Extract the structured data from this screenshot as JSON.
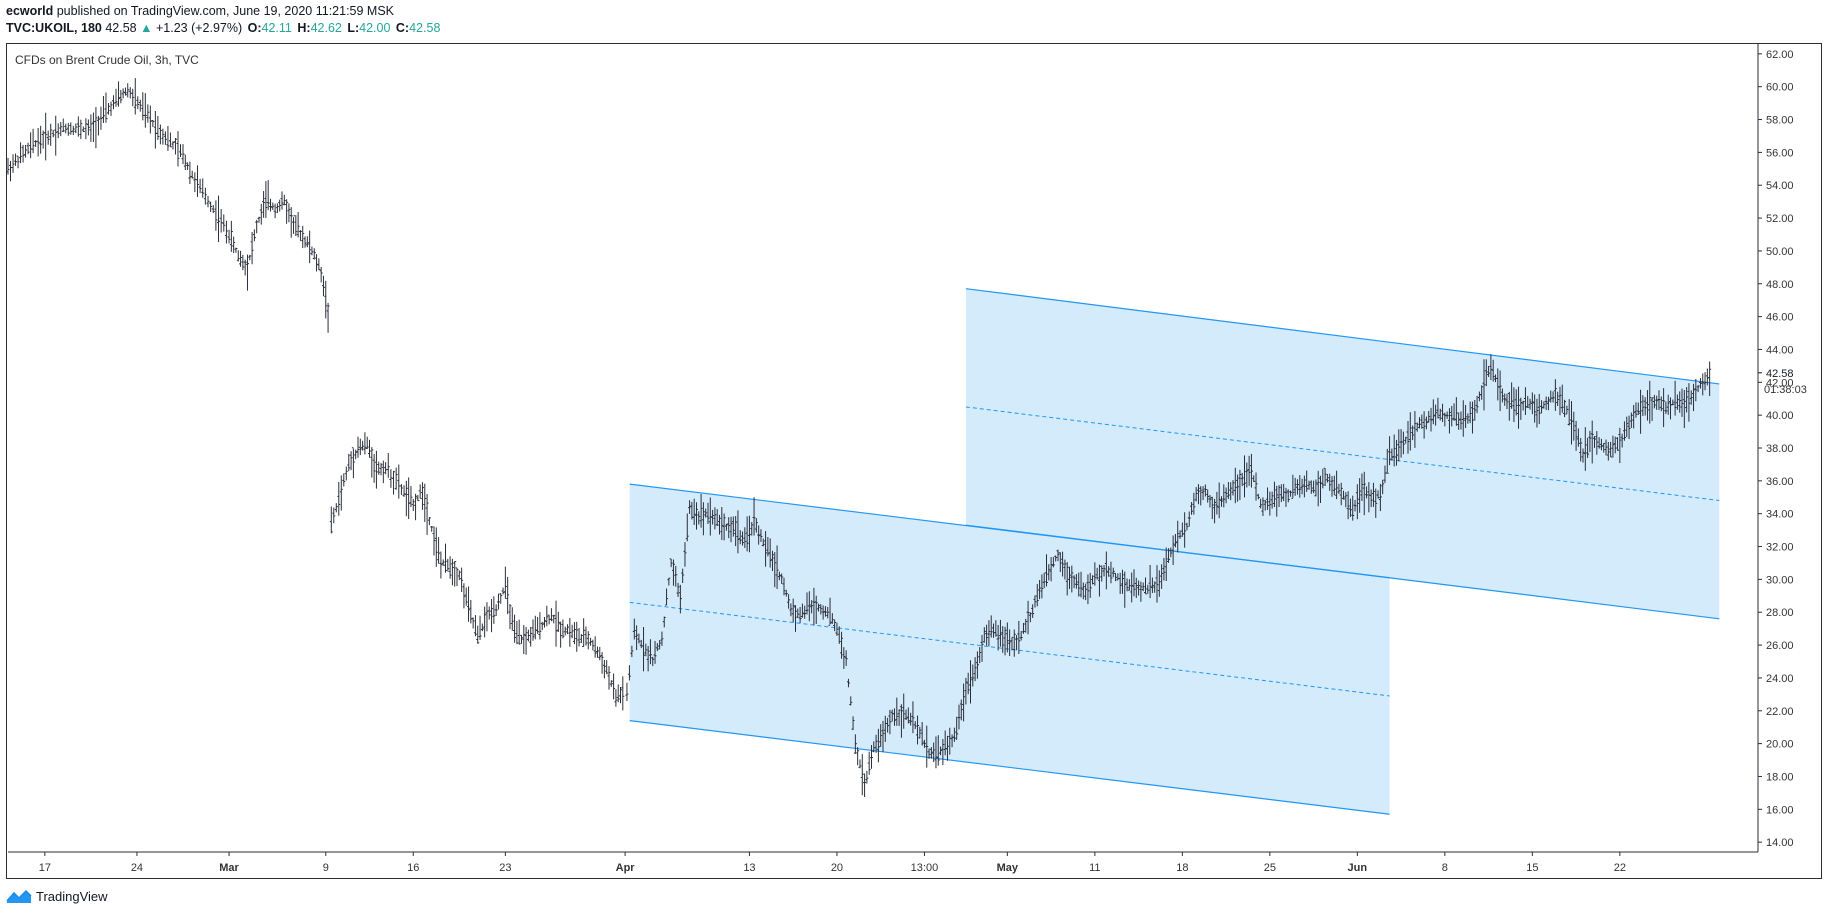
{
  "header": {
    "author": "ecworld",
    "published_text": "published on TradingView.com, June 19, 2020 11:21:59 MSK",
    "symbol": "TVC:UKOIL, 180",
    "last": "42.58",
    "change": "+1.23 (+2.97%)",
    "o_label": "O:",
    "o": "42.11",
    "h_label": "H:",
    "h": "42.62",
    "l_label": "L:",
    "l": "42.00",
    "c_label": "C:",
    "c": "42.58",
    "up_color": "#26a69a"
  },
  "chart_title": "CFDs on Brent Crude Oil, 3h, TVC",
  "footer": {
    "brand": "TradingView",
    "logo_icon": "tradingview-logo-icon"
  },
  "price_tag": {
    "price": "42.58",
    "countdown": "01:38:03"
  },
  "chart_data": {
    "type": "line",
    "ylim": [
      13.4,
      62.6
    ],
    "y_ticks": [
      "14.00",
      "16.00",
      "18.00",
      "20.00",
      "22.00",
      "24.00",
      "26.00",
      "28.00",
      "30.00",
      "32.00",
      "34.00",
      "36.00",
      "38.00",
      "40.00",
      "42.00",
      "44.00",
      "46.00",
      "48.00",
      "50.00",
      "52.00",
      "54.00",
      "56.00",
      "58.00",
      "60.00",
      "62.00"
    ],
    "x_ticks": [
      {
        "label": "17",
        "bold": false
      },
      {
        "label": "24",
        "bold": false
      },
      {
        "label": "Mar",
        "bold": true
      },
      {
        "label": "9",
        "bold": false
      },
      {
        "label": "16",
        "bold": false
      },
      {
        "label": "23",
        "bold": false
      },
      {
        "label": "Apr",
        "bold": true
      },
      {
        "label": "13",
        "bold": false
      },
      {
        "label": "20",
        "bold": false
      },
      {
        "label": "13:00",
        "bold": false
      },
      {
        "label": "May",
        "bold": true
      },
      {
        "label": "11",
        "bold": false
      },
      {
        "label": "18",
        "bold": false
      },
      {
        "label": "25",
        "bold": false
      },
      {
        "label": "Jun",
        "bold": true
      },
      {
        "label": "8",
        "bold": false
      },
      {
        "label": "15",
        "bold": false
      },
      {
        "label": "22",
        "bold": false
      }
    ],
    "series": [
      {
        "points": [
          [
            0,
            55.0
          ],
          [
            3,
            56.6
          ],
          [
            6,
            57.5
          ],
          [
            9,
            57.4
          ],
          [
            12,
            59.3
          ],
          [
            13,
            59.8
          ],
          [
            16,
            57.6
          ],
          [
            19,
            55.8
          ],
          [
            20,
            54.6
          ],
          [
            22,
            52.8
          ],
          [
            24,
            51.0
          ],
          [
            25,
            49.7
          ],
          [
            26,
            49.0
          ],
          [
            27,
            51.5
          ],
          [
            28,
            53.1
          ],
          [
            29,
            52.6
          ],
          [
            30,
            53.0
          ],
          [
            31,
            51.6
          ],
          [
            32,
            50.9
          ],
          [
            33,
            50.0
          ],
          [
            34,
            48.7
          ],
          [
            35,
            45.4
          ],
          [
            35.1,
            33.3
          ],
          [
            37,
            37.0
          ],
          [
            38,
            38.0
          ],
          [
            39,
            38.2
          ],
          [
            40,
            36.7
          ],
          [
            41,
            36.8
          ],
          [
            43,
            35.3
          ],
          [
            44,
            34.5
          ],
          [
            45,
            35.4
          ],
          [
            46,
            33.1
          ],
          [
            47,
            31.0
          ],
          [
            48,
            30.8
          ],
          [
            49,
            30.3
          ],
          [
            50,
            28.3
          ],
          [
            51,
            26.5
          ],
          [
            52,
            27.7
          ],
          [
            53,
            28.3
          ],
          [
            54,
            29.6
          ],
          [
            55,
            26.6
          ],
          [
            56,
            26.3
          ],
          [
            57,
            26.7
          ],
          [
            58,
            27.3
          ],
          [
            59,
            27.8
          ],
          [
            60,
            27.0
          ],
          [
            61,
            26.9
          ],
          [
            62,
            26.4
          ],
          [
            63,
            26.4
          ],
          [
            64,
            25.6
          ],
          [
            65,
            24.5
          ],
          [
            66,
            22.8
          ],
          [
            67,
            23.2
          ],
          [
            67.2,
            23.0
          ],
          [
            68,
            26.7
          ],
          [
            69,
            25.9
          ],
          [
            70,
            25.1
          ],
          [
            71,
            26.4
          ],
          [
            72,
            31.0
          ],
          [
            73,
            28.9
          ],
          [
            74,
            34.3
          ],
          [
            75,
            33.9
          ],
          [
            76,
            34.1
          ],
          [
            77,
            33.6
          ],
          [
            78,
            33.2
          ],
          [
            79,
            33.1
          ],
          [
            80,
            32.2
          ],
          [
            81,
            33.6
          ],
          [
            82,
            32.2
          ],
          [
            83,
            31.2
          ],
          [
            84,
            30.0
          ],
          [
            85,
            28.2
          ],
          [
            86,
            27.8
          ],
          [
            87,
            28.4
          ],
          [
            88,
            28.3
          ],
          [
            89,
            28.0
          ],
          [
            90,
            27.0
          ],
          [
            91,
            25.0
          ],
          [
            92,
            19.9
          ],
          [
            93,
            17.5
          ],
          [
            94,
            19.7
          ],
          [
            95,
            20.5
          ],
          [
            96,
            21.7
          ],
          [
            97,
            21.9
          ],
          [
            98,
            21.5
          ],
          [
            99,
            20.6
          ],
          [
            100,
            19.5
          ],
          [
            101,
            19.4
          ],
          [
            102,
            19.9
          ],
          [
            103,
            20.7
          ],
          [
            104,
            23.4
          ],
          [
            105,
            24.5
          ],
          [
            106,
            26.5
          ],
          [
            107,
            26.9
          ],
          [
            108,
            26.5
          ],
          [
            109,
            26.1
          ],
          [
            110,
            26.6
          ],
          [
            111,
            27.8
          ],
          [
            112,
            29.3
          ],
          [
            113,
            30.4
          ],
          [
            114,
            31.6
          ],
          [
            115,
            30.3
          ],
          [
            116,
            29.9
          ],
          [
            117,
            29.2
          ],
          [
            118,
            30.1
          ],
          [
            119,
            30.5
          ],
          [
            120,
            30.4
          ],
          [
            121,
            29.8
          ],
          [
            122,
            29.6
          ],
          [
            123,
            29.5
          ],
          [
            124,
            29.5
          ],
          [
            125,
            29.8
          ],
          [
            126,
            31.3
          ],
          [
            127,
            32.6
          ],
          [
            128,
            33.3
          ],
          [
            129,
            35.2
          ],
          [
            130,
            35.4
          ],
          [
            131,
            34.4
          ],
          [
            132,
            34.9
          ],
          [
            133,
            35.6
          ],
          [
            134,
            36.1
          ],
          [
            135,
            36.6
          ],
          [
            136,
            34.5
          ],
          [
            137,
            34.7
          ],
          [
            138,
            35.2
          ],
          [
            139,
            35.1
          ],
          [
            140,
            35.6
          ],
          [
            141,
            35.8
          ],
          [
            142,
            35.5
          ],
          [
            143,
            36.3
          ],
          [
            144,
            35.6
          ],
          [
            145,
            35.1
          ],
          [
            146,
            34.3
          ],
          [
            147,
            35.4
          ],
          [
            148,
            35.0
          ],
          [
            149,
            35.1
          ],
          [
            150,
            37.5
          ],
          [
            151,
            38.0
          ],
          [
            152,
            38.7
          ],
          [
            153,
            39.3
          ],
          [
            154,
            39.6
          ],
          [
            155,
            40.2
          ],
          [
            156,
            39.9
          ],
          [
            157,
            40.0
          ],
          [
            158,
            39.6
          ],
          [
            159,
            40.0
          ],
          [
            160,
            41.5
          ],
          [
            161,
            43.0
          ],
          [
            162,
            41.3
          ],
          [
            163,
            40.9
          ],
          [
            164,
            40.6
          ],
          [
            165,
            40.8
          ],
          [
            166,
            40.3
          ],
          [
            167,
            40.7
          ],
          [
            168,
            41.3
          ],
          [
            169,
            40.5
          ],
          [
            170,
            39.4
          ],
          [
            171,
            37.6
          ],
          [
            172,
            38.5
          ],
          [
            173,
            38.2
          ],
          [
            174,
            37.7
          ],
          [
            175,
            38.4
          ],
          [
            176,
            39.4
          ],
          [
            177,
            40.4
          ],
          [
            178,
            40.6
          ],
          [
            179,
            40.8
          ],
          [
            180,
            40.4
          ],
          [
            181,
            40.9
          ],
          [
            182,
            40.7
          ],
          [
            183,
            41.3
          ],
          [
            184,
            42.1
          ],
          [
            185,
            42.58
          ]
        ]
      }
    ],
    "channels": [
      {
        "x0": 67.5,
        "x1": 150,
        "upper": [
          35.8,
          30.1
        ],
        "mid": [
          28.6,
          22.9
        ],
        "lower": [
          21.4,
          15.7
        ]
      },
      {
        "x0": 104,
        "x1": 185.8,
        "upper": [
          47.7,
          41.9
        ],
        "mid": [
          40.5,
          34.8
        ],
        "lower": [
          33.3,
          27.6
        ]
      }
    ],
    "grid": false,
    "colors": {
      "candle": "#2a2e39",
      "channel_fill": "#cde7fa",
      "channel_line": "#2196f3",
      "price_tag": "#131722"
    }
  }
}
